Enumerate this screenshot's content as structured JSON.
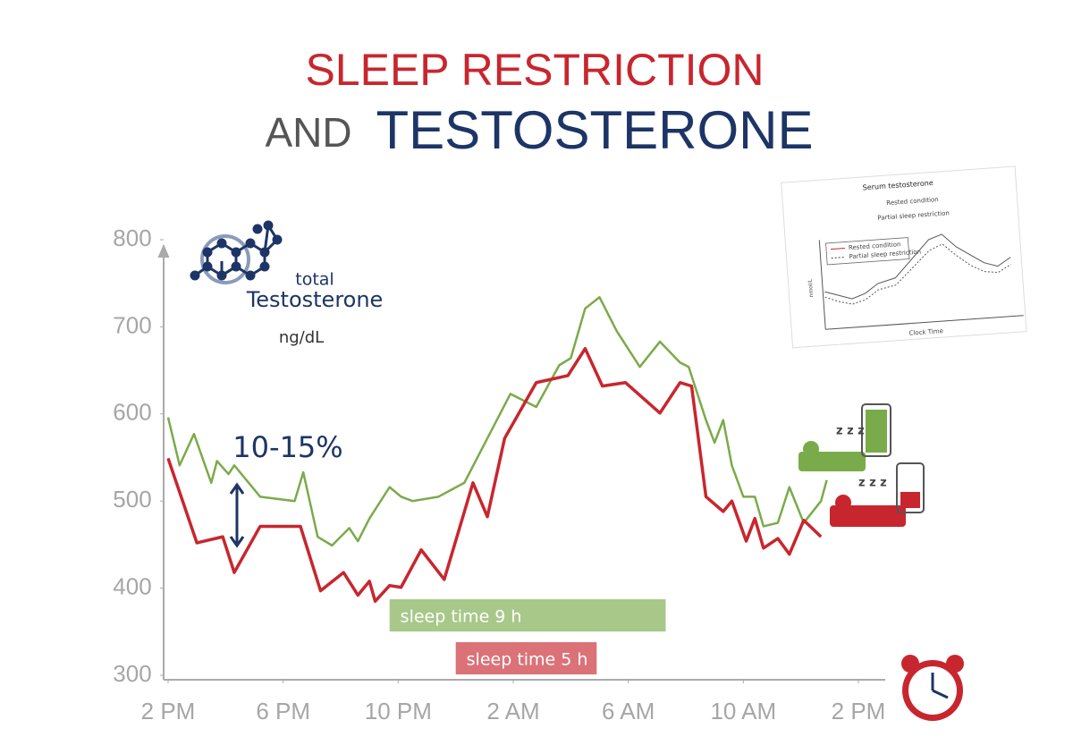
{
  "chart_data": {
    "type": "line",
    "title_line1": "SLEEP RESTRICTION",
    "title_and": "AND",
    "title_main": "TESTOSTERONE",
    "y_label_small": "total",
    "y_label": "Testosterone",
    "y_unit": "ng/dL",
    "annotation": "10-15%",
    "xlim": [
      0,
      24
    ],
    "xticks": [
      {
        "value": 0,
        "label": "2 PM"
      },
      {
        "value": 4,
        "label": "6 PM"
      },
      {
        "value": 8,
        "label": "10 PM"
      },
      {
        "value": 12,
        "label": "2 AM"
      },
      {
        "value": 16,
        "label": "6 AM"
      },
      {
        "value": 20,
        "label": "10 AM"
      },
      {
        "value": 24,
        "label": "2 PM"
      }
    ],
    "ylim": [
      300,
      800
    ],
    "yticks": [
      300,
      400,
      500,
      600,
      700,
      800
    ],
    "series": [
      {
        "name": "sleep time 9 h",
        "color": "#7aab4a",
        "x": [
          0,
          0.4,
          0.9,
          1.5,
          1.7,
          2.1,
          2.3,
          3.2,
          4.4,
          4.7,
          5.2,
          5.7,
          6.3,
          6.6,
          7.0,
          7.7,
          8.1,
          8.5,
          9.4,
          10.3,
          11.1,
          11.9,
          12.8,
          13.6,
          14.0,
          14.5,
          15.0,
          15.6,
          16.4,
          17.1,
          17.8,
          18.1,
          18.7,
          19.0,
          19.3,
          19.6,
          20.0,
          20.4,
          20.7,
          21.2,
          21.6,
          22.1,
          22.7,
          22.9
        ],
        "values": [
          596,
          541,
          577,
          521,
          546,
          531,
          541,
          505,
          500,
          533,
          459,
          449,
          469,
          454,
          480,
          516,
          505,
          500,
          505,
          521,
          572,
          623,
          608,
          656,
          664,
          721,
          734,
          695,
          654,
          683,
          659,
          654,
          593,
          567,
          593,
          541,
          505,
          505,
          471,
          475,
          516,
          475,
          500,
          524
        ],
        "band": [
          7.7,
          17.3
        ]
      },
      {
        "name": "sleep time 5 h",
        "color": "#c8262e",
        "x": [
          0,
          1.0,
          1.9,
          2.3,
          3.2,
          4.6,
          5.3,
          6.1,
          6.6,
          7.0,
          7.2,
          7.7,
          8.1,
          8.8,
          9.6,
          10.6,
          11.1,
          11.7,
          12.8,
          13.9,
          14.5,
          15.1,
          15.9,
          17.1,
          17.8,
          18.2,
          18.7,
          19.3,
          19.6,
          20.1,
          20.4,
          20.7,
          21.2,
          21.6,
          22.1,
          22.7
        ],
        "values": [
          549,
          452,
          459,
          418,
          471,
          471,
          397,
          418,
          392,
          408,
          385,
          403,
          401,
          444,
          410,
          521,
          482,
          572,
          636,
          644,
          675,
          632,
          636,
          601,
          636,
          632,
          505,
          488,
          500,
          454,
          480,
          446,
          457,
          439,
          478,
          459
        ],
        "band": [
          10.0,
          14.9
        ]
      }
    ],
    "inset": {
      "title": "Serum testosterone",
      "top_label_1": "Rested condition",
      "top_label_2": "Partial sleep restriction",
      "legend_1": "Rested condition",
      "legend_2": "Partial sleep restriction",
      "x_label": "Clock Time",
      "y_label": "nmol/L"
    }
  }
}
